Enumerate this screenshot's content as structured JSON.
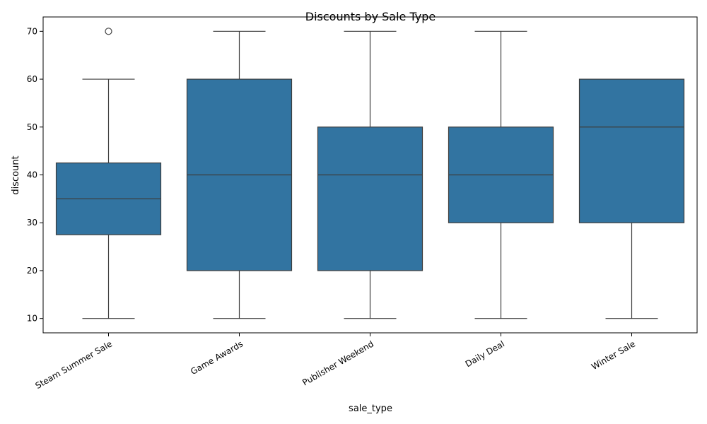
{
  "chart_data": {
    "type": "box",
    "title": "Discounts by Sale Type",
    "xlabel": "sale_type",
    "ylabel": "discount",
    "ylim": [
      7,
      73
    ],
    "yticks": [
      10,
      20,
      30,
      40,
      50,
      60,
      70
    ],
    "grid": false,
    "legend": "none",
    "box_color": "#3274a1",
    "line_color": "#3d3d3d",
    "categories": [
      "Steam Summer Sale",
      "Game Awards",
      "Publisher Weekend",
      "Daily Deal",
      "Winter Sale"
    ],
    "boxes": [
      {
        "category": "Steam Summer Sale",
        "whisker_low": 10,
        "q1": 27.5,
        "median": 35,
        "q3": 42.5,
        "whisker_high": 60,
        "outliers": [
          70
        ]
      },
      {
        "category": "Game Awards",
        "whisker_low": 10,
        "q1": 20,
        "median": 40,
        "q3": 60,
        "whisker_high": 70,
        "outliers": []
      },
      {
        "category": "Publisher Weekend",
        "whisker_low": 10,
        "q1": 20,
        "median": 40,
        "q3": 50,
        "whisker_high": 70,
        "outliers": []
      },
      {
        "category": "Daily Deal",
        "whisker_low": 10,
        "q1": 30,
        "median": 40,
        "q3": 50,
        "whisker_high": 70,
        "outliers": []
      },
      {
        "category": "Winter Sale",
        "whisker_low": 10,
        "q1": 30,
        "median": 50,
        "q3": 60,
        "whisker_high": 60,
        "outliers": []
      }
    ]
  }
}
